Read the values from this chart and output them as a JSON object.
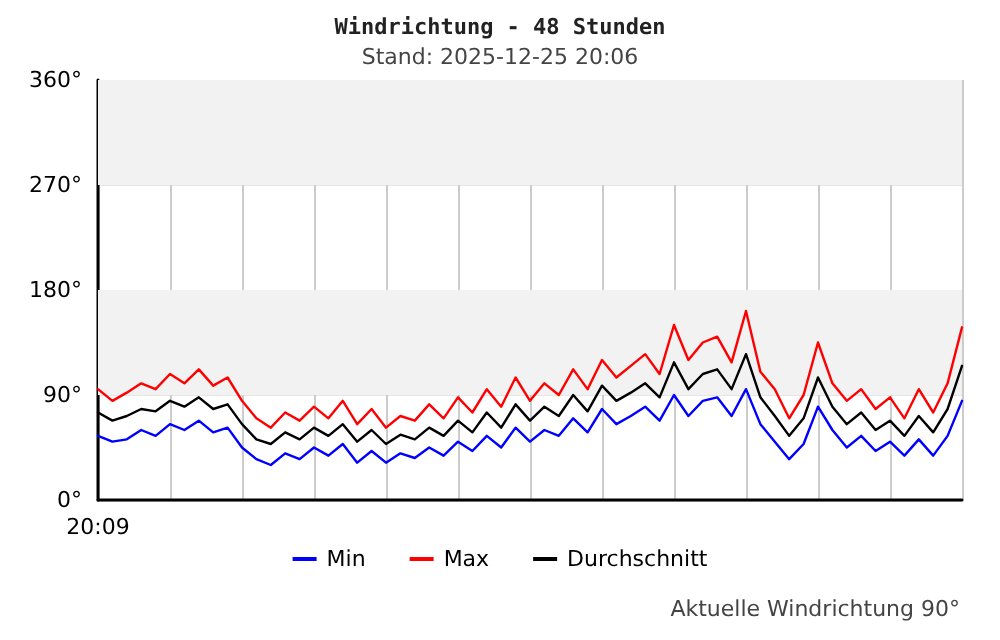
{
  "chart_data": {
    "type": "line",
    "title": "Windrichtung - 48 Stunden",
    "subtitle": "Stand: 2025-12-25 20:06",
    "categories": [
      "20:09",
      null,
      null,
      null,
      null,
      null,
      null,
      null,
      null,
      null,
      null,
      null,
      null,
      null,
      null,
      null,
      null,
      null,
      null,
      null,
      null,
      null,
      null,
      null,
      null,
      null,
      null,
      null,
      null,
      null,
      null,
      null,
      null,
      null,
      null,
      null,
      null,
      null,
      null,
      null,
      null,
      null,
      null,
      null,
      null,
      null,
      null,
      null,
      null,
      null,
      null,
      null,
      null,
      null,
      null,
      null,
      null,
      null,
      null,
      null,
      null
    ],
    "series": [
      {
        "name": "Min",
        "color": "#0000ff",
        "values": [
          55,
          50,
          52,
          60,
          55,
          65,
          60,
          68,
          58,
          62,
          45,
          35,
          30,
          40,
          35,
          45,
          38,
          48,
          32,
          42,
          32,
          40,
          36,
          45,
          38,
          50,
          42,
          55,
          45,
          62,
          50,
          60,
          55,
          70,
          58,
          78,
          65,
          72,
          80,
          68,
          90,
          72,
          85,
          88,
          72,
          95,
          65,
          50,
          35,
          48,
          80,
          60,
          45,
          55,
          42,
          50,
          38,
          52,
          38,
          55,
          85
        ]
      },
      {
        "name": "Max",
        "color": "#ff0000",
        "values": [
          95,
          85,
          92,
          100,
          95,
          108,
          100,
          112,
          98,
          105,
          85,
          70,
          62,
          75,
          68,
          80,
          70,
          85,
          65,
          78,
          62,
          72,
          68,
          82,
          70,
          88,
          75,
          95,
          80,
          105,
          85,
          100,
          90,
          112,
          95,
          120,
          105,
          115,
          125,
          108,
          150,
          120,
          135,
          140,
          118,
          162,
          110,
          95,
          70,
          90,
          135,
          100,
          85,
          95,
          78,
          88,
          70,
          95,
          75,
          100,
          148
        ]
      },
      {
        "name": "Durchschnitt",
        "color": "#000000",
        "values": [
          75,
          68,
          72,
          78,
          76,
          85,
          80,
          88,
          78,
          82,
          65,
          52,
          48,
          58,
          52,
          62,
          55,
          65,
          50,
          60,
          48,
          56,
          52,
          62,
          55,
          68,
          58,
          75,
          62,
          82,
          68,
          80,
          72,
          90,
          76,
          98,
          85,
          92,
          100,
          88,
          118,
          95,
          108,
          112,
          95,
          125,
          88,
          72,
          55,
          70,
          105,
          80,
          65,
          75,
          60,
          68,
          55,
          72,
          58,
          78,
          115
        ]
      }
    ],
    "ylim": [
      0,
      360
    ],
    "yticks": [
      {
        "value": 0,
        "label": "0°"
      },
      {
        "value": 90,
        "label": "90°"
      },
      {
        "value": 180,
        "label": "180°"
      },
      {
        "value": 270,
        "label": "270°"
      },
      {
        "value": 360,
        "label": "360°"
      }
    ],
    "bands": [
      {
        "axis": "y",
        "from": 90,
        "to": 180,
        "color": "#f2f2f2"
      },
      {
        "axis": "y",
        "from": 270,
        "to": 360,
        "color": "#f2f2f2"
      }
    ],
    "grid": true,
    "legend": "bottom",
    "marker": "none",
    "line_style": "solid",
    "annotations": [
      "Aktuelle Windrichtung 90°"
    ]
  }
}
